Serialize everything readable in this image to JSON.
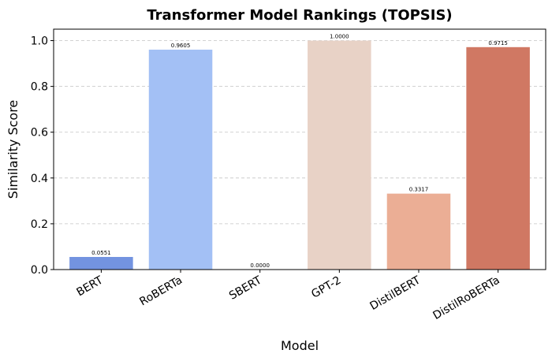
{
  "chart_data": {
    "type": "bar",
    "title": "Transformer Model Rankings (TOPSIS)",
    "xlabel": "Model",
    "ylabel": "Similarity Score",
    "categories": [
      "BERT",
      "RoBERTa",
      "SBERT",
      "GPT-2",
      "DistilBERT",
      "DistilRoBERTa"
    ],
    "values": [
      0.0551,
      0.9605,
      0.0,
      1.0,
      0.3317,
      0.9715
    ],
    "value_labels": [
      "0.0551",
      "0.9605",
      "0.0000",
      "1.0000",
      "0.3317",
      "0.9715"
    ],
    "colors": [
      "#7393e0",
      "#a3c0f5",
      "#dcdddd",
      "#e8d2c6",
      "#ebae95",
      "#d07863"
    ],
    "ylim": [
      0,
      1.05
    ],
    "yticks": [
      0.0,
      0.2,
      0.4,
      0.6,
      0.8,
      1.0
    ],
    "ytick_labels": [
      "0.0",
      "0.2",
      "0.4",
      "0.6",
      "0.8",
      "1.0"
    ],
    "grid": "y-dashed",
    "legend": "none"
  }
}
